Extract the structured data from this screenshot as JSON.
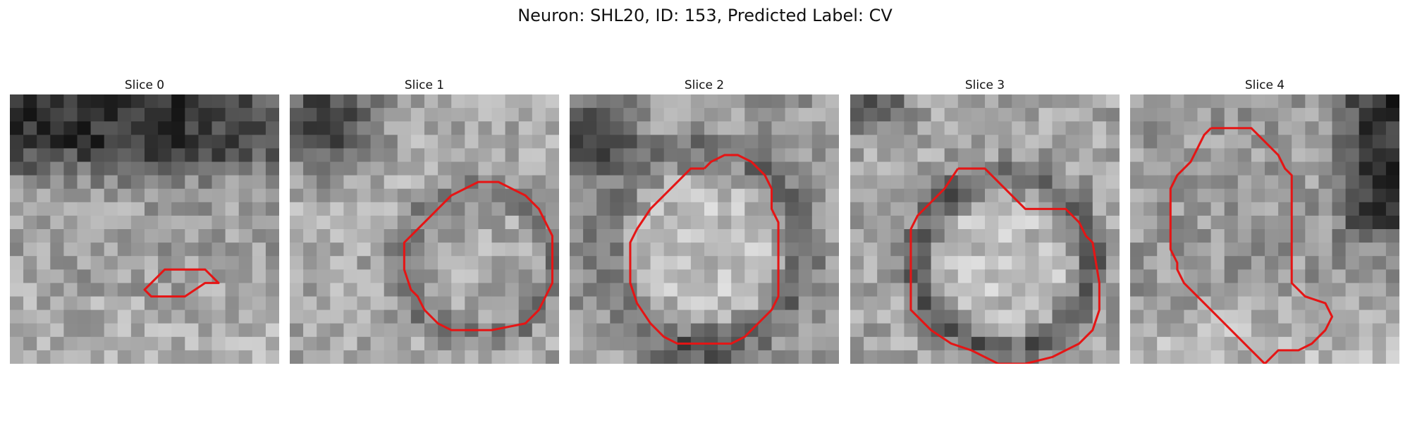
{
  "figure": {
    "title": "Neuron: SHL20, ID: 153, Predicted Label: CV"
  },
  "panels": [
    {
      "title": "Slice 0",
      "contour": [
        [
          10.5,
          14
        ],
        [
          11.5,
          13
        ],
        [
          14.5,
          13
        ],
        [
          15.5,
          14
        ],
        [
          14.5,
          14
        ],
        [
          13,
          15
        ],
        [
          10.5,
          15
        ],
        [
          10,
          14.5
        ]
      ]
    },
    {
      "title": "Slice 1",
      "contour": [
        [
          9.5,
          10
        ],
        [
          10.5,
          9
        ],
        [
          11,
          8.5
        ],
        [
          12,
          7.5
        ],
        [
          14,
          6.5
        ],
        [
          15.5,
          6.5
        ],
        [
          16.5,
          7
        ],
        [
          17.5,
          7.5
        ],
        [
          18.5,
          8.5
        ],
        [
          19,
          9.5
        ],
        [
          19.5,
          10.5
        ],
        [
          19.5,
          14
        ],
        [
          19,
          15
        ],
        [
          18.5,
          16
        ],
        [
          17.5,
          17
        ],
        [
          15,
          17.5
        ],
        [
          12,
          17.5
        ],
        [
          11,
          17
        ],
        [
          10,
          16
        ],
        [
          9.5,
          15
        ],
        [
          9,
          14.5
        ],
        [
          8.5,
          13
        ],
        [
          8.5,
          11
        ],
        [
          9,
          10.5
        ]
      ]
    },
    {
      "title": "Slice 2",
      "contour": [
        [
          10,
          5.5
        ],
        [
          10.5,
          5
        ],
        [
          11.5,
          4.5
        ],
        [
          12.5,
          4.5
        ],
        [
          13.5,
          5
        ],
        [
          14.5,
          6
        ],
        [
          15,
          7
        ],
        [
          15,
          8.5
        ],
        [
          15.5,
          9.5
        ],
        [
          15.5,
          15
        ],
        [
          15,
          16
        ],
        [
          14,
          17
        ],
        [
          13,
          18
        ],
        [
          12,
          18.5
        ],
        [
          8,
          18.5
        ],
        [
          7,
          18
        ],
        [
          6,
          17
        ],
        [
          5,
          15.5
        ],
        [
          4.5,
          14
        ],
        [
          4.5,
          11
        ],
        [
          5,
          10
        ],
        [
          6,
          8.5
        ],
        [
          7.5,
          7
        ],
        [
          8.5,
          6
        ],
        [
          9,
          5.5
        ]
      ]
    },
    {
      "title": "Slice 3",
      "contour": [
        [
          8,
          5.5
        ],
        [
          10,
          5.5
        ],
        [
          11,
          6.5
        ],
        [
          12.5,
          8
        ],
        [
          13,
          8.5
        ],
        [
          16,
          8.5
        ],
        [
          17,
          9.5
        ],
        [
          17.5,
          10.5
        ],
        [
          18,
          11
        ],
        [
          18.5,
          14
        ],
        [
          18.5,
          16
        ],
        [
          18,
          17.5
        ],
        [
          17,
          18.5
        ],
        [
          16,
          19
        ],
        [
          15,
          19.5
        ],
        [
          13,
          20
        ],
        [
          11,
          20
        ],
        [
          10,
          19.5
        ],
        [
          9,
          19
        ],
        [
          7.5,
          18.5
        ],
        [
          6,
          17.5
        ],
        [
          4.5,
          16
        ],
        [
          4.5,
          10
        ],
        [
          5,
          9
        ],
        [
          6,
          8
        ],
        [
          7,
          7
        ]
      ]
    },
    {
      "title": "Slice 4",
      "contour": [
        [
          6,
          2.5
        ],
        [
          9,
          2.5
        ],
        [
          10,
          3.5
        ],
        [
          11,
          4.5
        ],
        [
          11.5,
          5.5
        ],
        [
          12,
          6
        ],
        [
          12,
          14
        ],
        [
          12.5,
          14.5
        ],
        [
          13,
          15
        ],
        [
          14.5,
          15.5
        ],
        [
          15,
          16.5
        ],
        [
          14.5,
          17.5
        ],
        [
          13.5,
          18.5
        ],
        [
          12.5,
          19
        ],
        [
          11,
          19
        ],
        [
          10.5,
          19.5
        ],
        [
          10,
          20
        ],
        [
          9.5,
          19.5
        ],
        [
          9,
          19
        ],
        [
          8,
          18
        ],
        [
          7,
          17
        ],
        [
          6,
          16
        ],
        [
          5,
          15
        ],
        [
          4,
          14
        ],
        [
          3.5,
          13
        ],
        [
          3.5,
          12.5
        ],
        [
          3,
          11.5
        ],
        [
          3,
          10
        ],
        [
          3,
          8.5
        ],
        [
          3,
          7
        ],
        [
          3.5,
          6
        ],
        [
          4.5,
          5
        ],
        [
          5,
          4
        ],
        [
          5.5,
          3
        ]
      ]
    }
  ]
}
